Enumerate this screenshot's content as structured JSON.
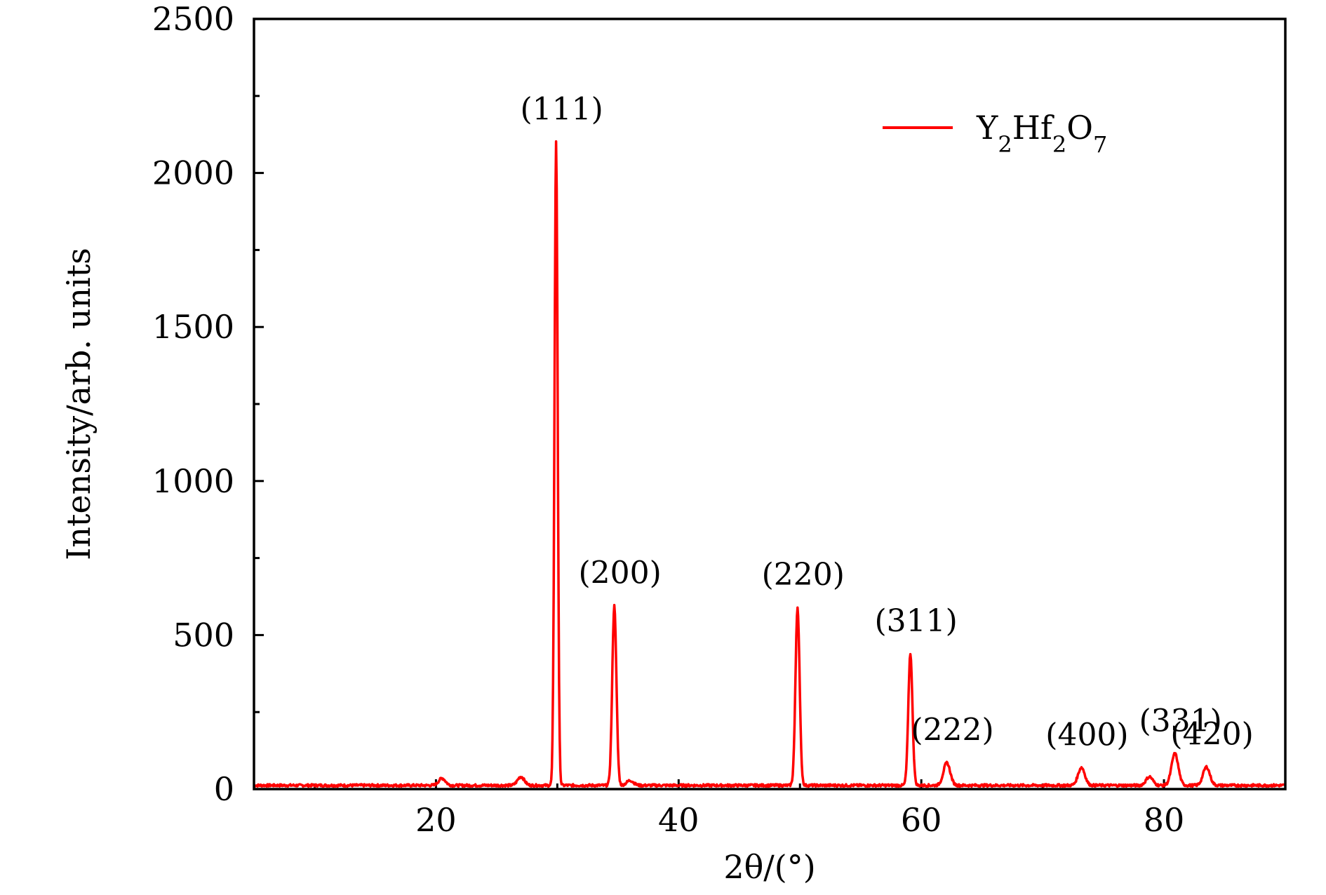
{
  "chart_data": {
    "type": "line",
    "xlabel": "2θ/(°)",
    "ylabel": "Intensity/arb. units",
    "xlim": [
      5,
      90
    ],
    "ylim": [
      0,
      2500
    ],
    "x_ticks": [
      20,
      40,
      60,
      80
    ],
    "y_ticks": [
      0,
      500,
      1000,
      1500,
      2000,
      2500
    ],
    "grid": false,
    "legend_position": "top-right",
    "series": [
      {
        "name": "Y2Hf2O7",
        "color": "#ff0000",
        "baseline": 12,
        "peaks": [
          {
            "x": 20.5,
            "y": 35
          },
          {
            "x": 27.0,
            "y": 40
          },
          {
            "x": 29.9,
            "y": 2100
          },
          {
            "x": 34.7,
            "y": 595
          },
          {
            "x": 36.0,
            "y": 28
          },
          {
            "x": 49.8,
            "y": 590
          },
          {
            "x": 59.1,
            "y": 440
          },
          {
            "x": 62.1,
            "y": 85
          },
          {
            "x": 73.2,
            "y": 70
          },
          {
            "x": 78.8,
            "y": 40
          },
          {
            "x": 80.9,
            "y": 115
          },
          {
            "x": 83.5,
            "y": 72
          }
        ]
      }
    ],
    "annotations": [
      {
        "text": "(111)",
        "x": 29.9,
        "y": 2100
      },
      {
        "text": "(200)",
        "x": 34.7,
        "y": 595
      },
      {
        "text": "(220)",
        "x": 49.8,
        "y": 590
      },
      {
        "text": "(311)",
        "x": 59.1,
        "y": 440
      },
      {
        "text": "(222)",
        "x": 62.1,
        "y": 85
      },
      {
        "text": "(400)",
        "x": 73.2,
        "y": 70
      },
      {
        "text": "(331)",
        "x": 80.9,
        "y": 115
      },
      {
        "text": "(420)",
        "x": 83.5,
        "y": 72
      }
    ]
  }
}
